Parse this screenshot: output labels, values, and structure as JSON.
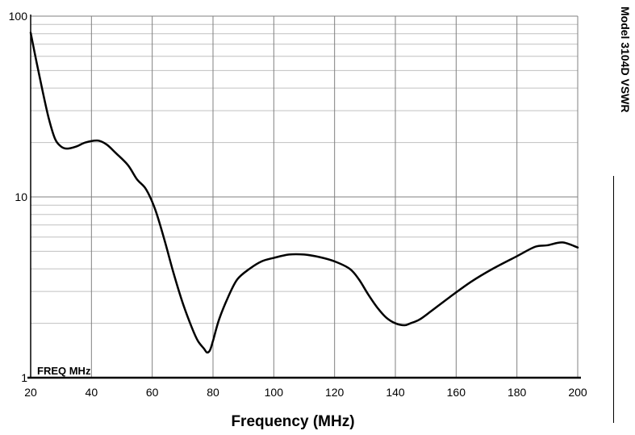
{
  "side_title": "Model 3104D VSWR",
  "chart_data": {
    "type": "line",
    "title": "",
    "xlabel": "Frequency (MHz)",
    "ylabel": "",
    "inner_label": "FREQ  MHz",
    "xlim": [
      20,
      200
    ],
    "ylim": [
      1,
      100
    ],
    "yscale": "log",
    "grid": true,
    "x_ticks": [
      20,
      40,
      60,
      80,
      100,
      120,
      140,
      160,
      180,
      200
    ],
    "y_ticks": [
      1,
      10,
      100
    ],
    "y_tick_labels": [
      "1",
      "10",
      "100"
    ],
    "series": [
      {
        "x": [
          20,
          22,
          24,
          26,
          28,
          30,
          32,
          35,
          38,
          42,
          45,
          48,
          52,
          55,
          58,
          61,
          64,
          67,
          70,
          73,
          75,
          77,
          78,
          79,
          80,
          82,
          85,
          88,
          92,
          96,
          100,
          105,
          110,
          115,
          120,
          125,
          128,
          131,
          134,
          137,
          140,
          143,
          145,
          148,
          152,
          158,
          165,
          172,
          180,
          186,
          190,
          195,
          200
        ],
        "y": [
          81,
          55,
          38,
          27,
          21,
          19,
          18.5,
          19,
          20,
          20.5,
          19.5,
          17.5,
          15,
          12.5,
          11,
          8.5,
          5.8,
          3.8,
          2.6,
          1.9,
          1.6,
          1.45,
          1.38,
          1.42,
          1.6,
          2.1,
          2.8,
          3.5,
          4.0,
          4.4,
          4.6,
          4.8,
          4.8,
          4.65,
          4.4,
          4.0,
          3.5,
          2.9,
          2.45,
          2.15,
          2.0,
          1.95,
          2.0,
          2.1,
          2.35,
          2.8,
          3.4,
          4.0,
          4.7,
          5.3,
          5.4,
          5.6,
          5.25
        ]
      }
    ]
  },
  "colors": {
    "line": "#000000",
    "major_grid": "#808080",
    "minor_grid": "#c0c0c0"
  }
}
